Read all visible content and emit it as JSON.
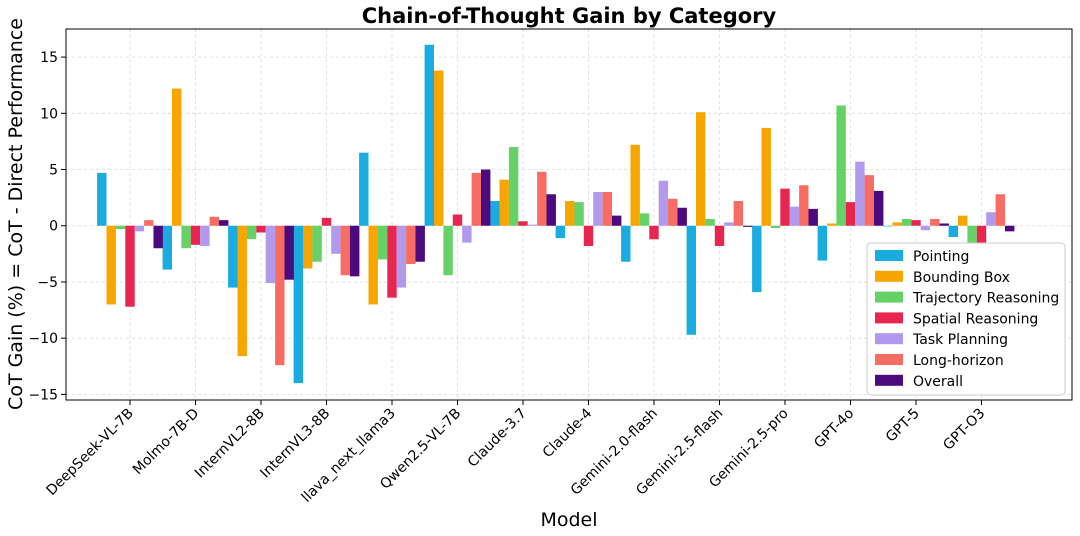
{
  "chart_data": {
    "type": "bar",
    "title": "Chain-of-Thought Gain by Category",
    "xlabel": "Model",
    "ylabel": "CoT Gain (%) = CoT - Direct Performance",
    "ylim": [
      -15.5,
      17.5
    ],
    "yticks": [
      -15,
      -10,
      -5,
      0,
      5,
      10,
      15
    ],
    "ytick_labels": [
      "−15",
      "−10",
      "−5",
      "0",
      "5",
      "10",
      "15"
    ],
    "grid": true,
    "legend_position": "lower-right",
    "categories": [
      "DeepSeek-VL-7B",
      "Molmo-7B-D",
      "InternVL2-8B",
      "InternVL3-8B",
      "llava_next_llama3",
      "Qwen2.5-VL-7B",
      "Claude-3.7",
      "Claude-4",
      "Gemini-2.0-flash",
      "Gemini-2.5-flash",
      "Gemini-2.5-pro",
      "GPT-4o",
      "GPT-5",
      "GPT-O3"
    ],
    "series": [
      {
        "name": "Pointing",
        "color": "#1AABE0",
        "values": [
          4.7,
          -3.9,
          -5.5,
          -14.0,
          6.5,
          16.1,
          2.2,
          -1.1,
          -3.2,
          -9.7,
          -5.9,
          -3.1,
          0.0,
          -1.0
        ]
      },
      {
        "name": "Bounding Box",
        "color": "#F7A600",
        "values": [
          -7.0,
          12.2,
          -11.6,
          -3.8,
          -7.0,
          13.8,
          4.1,
          2.2,
          7.2,
          10.1,
          8.7,
          0.2,
          0.3,
          0.9
        ]
      },
      {
        "name": "Trajectory Reasoning",
        "color": "#66D166",
        "values": [
          -0.3,
          -2.0,
          -1.2,
          -3.2,
          -3.0,
          -4.4,
          7.0,
          2.1,
          1.1,
          0.6,
          -0.2,
          10.7,
          0.6,
          -1.6
        ]
      },
      {
        "name": "Spatial Reasoning",
        "color": "#E8254E",
        "values": [
          -7.2,
          -1.7,
          -0.6,
          0.7,
          -6.4,
          1.0,
          0.4,
          -1.8,
          -1.2,
          -1.8,
          3.3,
          2.1,
          0.5,
          -1.7
        ]
      },
      {
        "name": "Task Planning",
        "color": "#B19AED",
        "values": [
          -0.5,
          -1.8,
          -5.1,
          -2.5,
          -5.5,
          -1.5,
          0.1,
          3.0,
          4.0,
          0.3,
          1.7,
          5.7,
          -0.4,
          1.2
        ]
      },
      {
        "name": "Long-horizon",
        "color": "#F76D63",
        "values": [
          0.5,
          0.8,
          -12.4,
          -4.4,
          -3.4,
          4.7,
          4.8,
          3.0,
          2.4,
          2.2,
          3.6,
          4.5,
          0.6,
          2.8
        ]
      },
      {
        "name": "Overall",
        "color": "#4B0A7D",
        "values": [
          -2.0,
          0.5,
          -4.8,
          -4.5,
          -3.2,
          5.0,
          2.8,
          0.9,
          1.6,
          -0.1,
          1.5,
          3.1,
          0.2,
          -0.5
        ]
      }
    ]
  }
}
